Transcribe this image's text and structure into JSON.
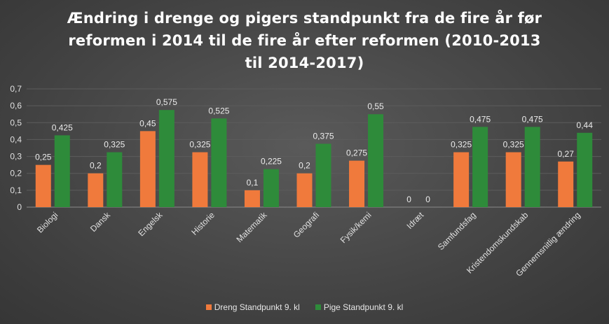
{
  "chart_data": {
    "type": "bar",
    "title_lines": [
      "Ændring i drenge og pigers standpunkt fra de fire år før",
      "reformen i 2014 til de fire år efter reformen (2010-2013",
      "til 2014-2017)"
    ],
    "categories": [
      "Biologi",
      "Dansk",
      "Engelsk",
      "Historie",
      "Matematik",
      "Geografi",
      "Fysik/kemi",
      "Idræt",
      "Samfundsfag",
      "Kristendomskundskab",
      "Gennemsnitlig ændring"
    ],
    "series": [
      {
        "name": "Dreng Standpunkt 9. kl",
        "color": "#f07a3c",
        "values": [
          0.25,
          0.2,
          0.45,
          0.325,
          0.1,
          0.2,
          0.275,
          0,
          0.325,
          0.325,
          0.27
        ],
        "labels": [
          "0,25",
          "0,2",
          "0,45",
          "0,325",
          "0,1",
          "0,2",
          "0,275",
          "0",
          "0,325",
          "0,325",
          "0,27"
        ]
      },
      {
        "name": "Pige Standpunkt 9. kl",
        "color": "#2e8b3a",
        "values": [
          0.425,
          0.325,
          0.575,
          0.525,
          0.225,
          0.375,
          0.55,
          0,
          0.475,
          0.475,
          0.44
        ],
        "labels": [
          "0,425",
          "0,325",
          "0,575",
          "0,525",
          "0,225",
          "0,375",
          "0,55",
          "0",
          "0,475",
          "0,475",
          "0,44"
        ]
      }
    ],
    "yticks": [
      "0",
      "0,1",
      "0,2",
      "0,3",
      "0,4",
      "0,5",
      "0,6",
      "0,7"
    ],
    "ylim": [
      0,
      0.7
    ],
    "grid": true,
    "legend_position": "bottom"
  }
}
